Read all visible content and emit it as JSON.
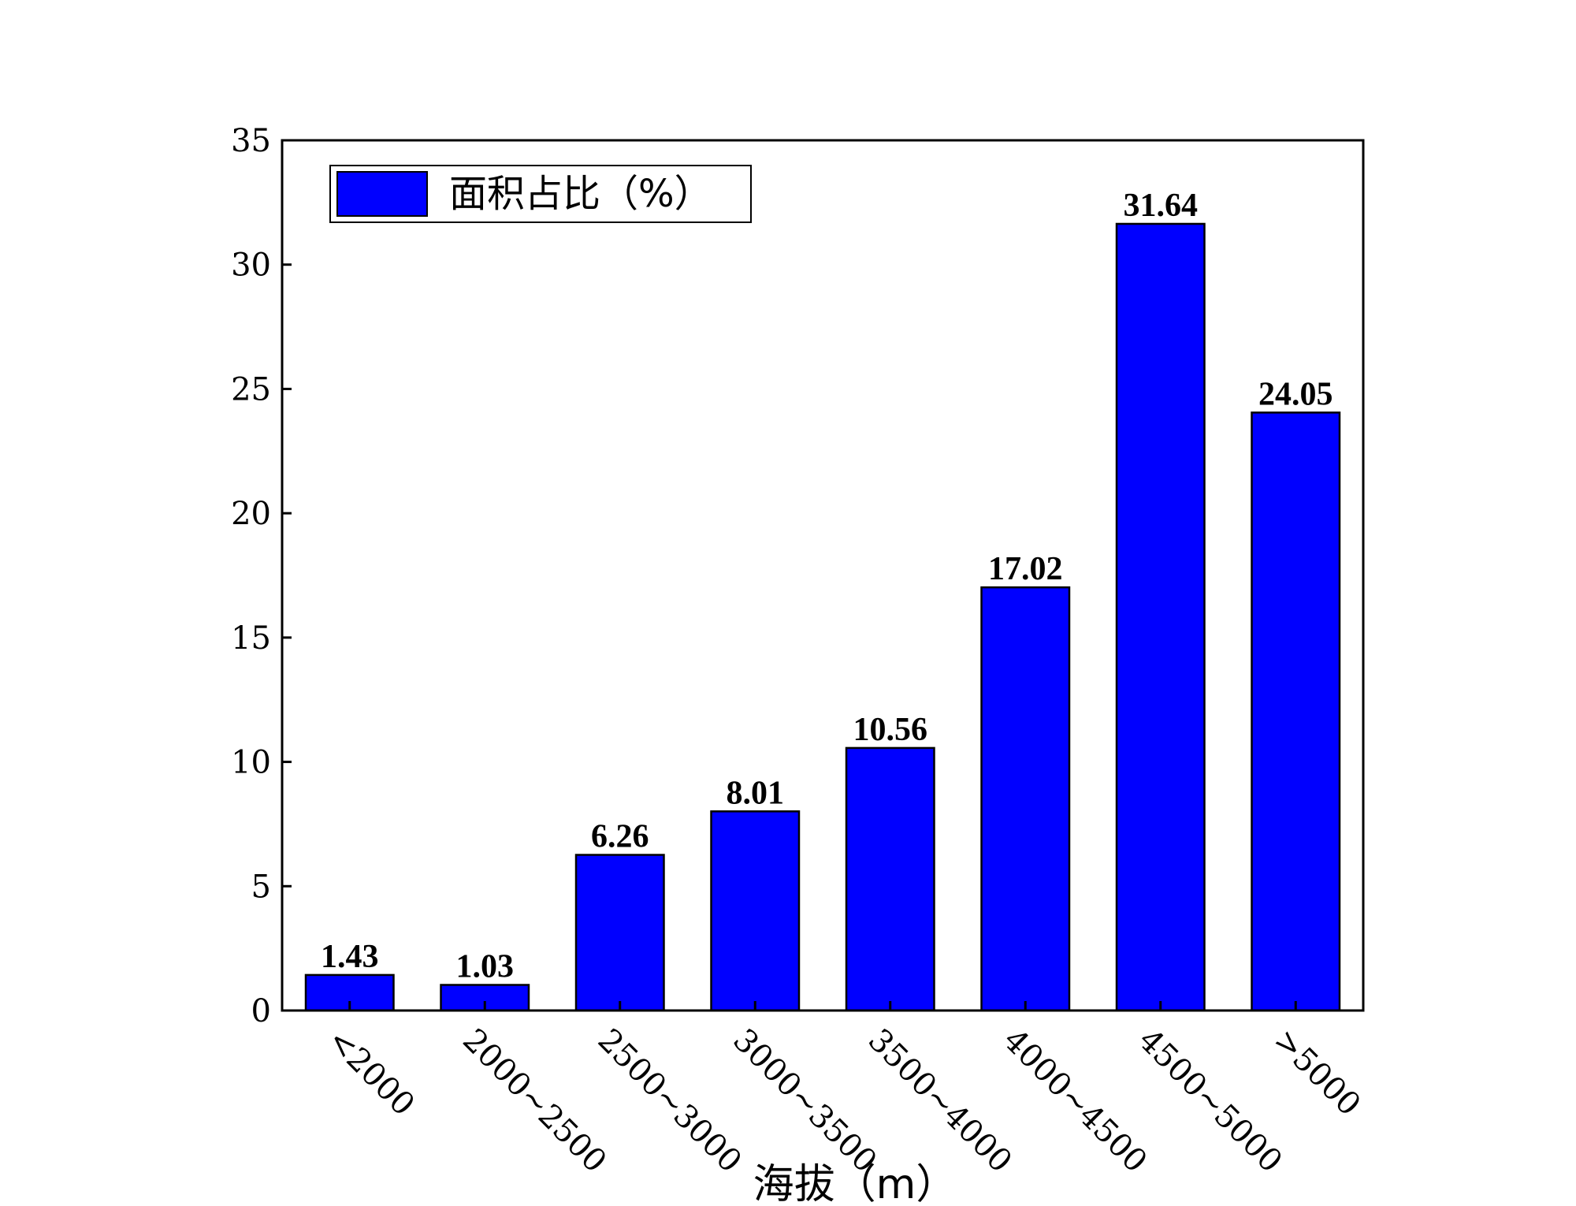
{
  "chart_data": {
    "type": "bar",
    "categories": [
      "<2000",
      "2000~2500",
      "2500~3000",
      "3000~3500",
      "3500~4000",
      "4000~4500",
      "4500~5000",
      ">5000"
    ],
    "series": [
      {
        "name": "面积占比（%）",
        "values": [
          1.43,
          1.03,
          6.26,
          8.01,
          10.56,
          17.02,
          31.64,
          24.05
        ],
        "color": "#0000ff"
      }
    ],
    "data_labels": [
      "1.43",
      "1.03",
      "6.26",
      "8.01",
      "10.56",
      "17.02",
      "31.64",
      "24.05"
    ],
    "xlabel": "海拔（m）",
    "ylabel": "",
    "ylim": [
      0,
      35
    ],
    "yticks": [
      0,
      5,
      10,
      15,
      20,
      25,
      30,
      35
    ],
    "grid": false,
    "legend": "top-left",
    "bar_outline_color": "#000000"
  }
}
